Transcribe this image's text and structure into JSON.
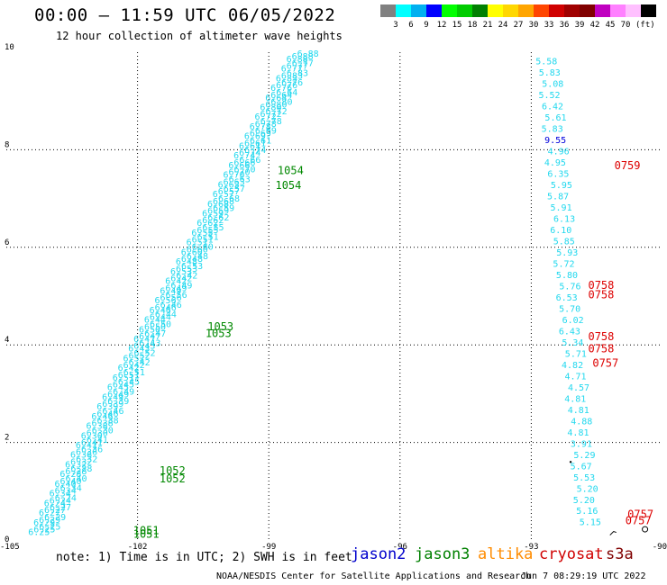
{
  "title": "00:00 – 11:59 UTC 06/05/2022",
  "subtitle": "12 hour collection of altimeter wave heights",
  "legend": {
    "colors": [
      "#808080",
      "#00ffff",
      "#00b0f0",
      "#0000ff",
      "#00ff00",
      "#00cc00",
      "#008000",
      "#ffff00",
      "#ffd700",
      "#ffa500",
      "#ff4500",
      "#d00000",
      "#a00000",
      "#800000",
      "#c000c0",
      "#ff80ff",
      "#ffc0ff",
      "#000000"
    ],
    "labels": [
      "3",
      "6",
      "9",
      "12",
      "15",
      "18",
      "21",
      "24",
      "27",
      "30",
      "33",
      "36",
      "39",
      "42",
      "45",
      "70",
      "(ft)"
    ]
  },
  "axes": {
    "x_ticks": [
      "-105",
      "-102",
      "-99",
      "-96",
      "-93",
      "-90"
    ],
    "y_ticks": [
      "0",
      "2",
      "4",
      "6",
      "8",
      "10"
    ]
  },
  "tracks": {
    "left_swh": [
      "6.25",
      "6.29",
      "6.27",
      "6.24",
      "6.34",
      "6.40",
      "6.28",
      "6.32",
      "6.36",
      "6.41",
      "6.30",
      "6.38",
      "6.46",
      "6.39",
      "6.49",
      "6.45",
      "6.51",
      "6.42",
      "6.52",
      "6.43",
      "6.47",
      "6.50",
      "6.44",
      "6.46",
      "6.56",
      "6.49",
      "6.42",
      "6.53",
      "6.48",
      "6.60",
      "6.51",
      "6.55",
      "6.62",
      "6.59",
      "6.68",
      "6.57",
      "6.63",
      "6.70",
      "6.66",
      "6.74",
      "6.61",
      "6.69",
      "6.78",
      "6.72",
      "6.80",
      "6.64",
      "6.76",
      "6.83",
      "6.77",
      "6.88"
    ],
    "left_times_lower": [
      "1051",
      "1051",
      "1052",
      "1052"
    ],
    "left_times_mid": [
      "1053",
      "1053"
    ],
    "left_times_upper": [
      "1054",
      "1054"
    ],
    "right_swh": [
      "5.58",
      "5.83",
      "5.08",
      "5.52",
      "6.42",
      "5.61",
      "5.83",
      "9.55",
      "4.96",
      "4.95",
      "6.35",
      "5.95",
      "5.87",
      "5.91",
      "6.13",
      "6.10",
      "5.85",
      "5.93",
      "5.72",
      "5.80",
      "5.76",
      "6.53",
      "5.70",
      "6.02",
      "6.43",
      "5.34",
      "5.71",
      "4.82",
      "4.71",
      "4.57",
      "4.81",
      "4.81",
      "4.88",
      "4.81",
      "3.91",
      "5.29",
      "5.67",
      "5.53",
      "5.20",
      "5.20",
      "5.16",
      "5.15"
    ],
    "right_times": [
      "0759",
      "0758",
      "0758",
      "0758",
      "0758",
      "0757",
      "0757",
      "0757"
    ]
  },
  "satellites": [
    {
      "name": "jason2",
      "color": "#0000cc"
    },
    {
      "name": "jason3",
      "color": "#008000"
    },
    {
      "name": "altika",
      "color": "#ff8c00"
    },
    {
      "name": "cryosat",
      "color": "#d00000"
    },
    {
      "name": "s3a",
      "color": "#800000"
    }
  ],
  "note": "note: 1) Time is in UTC; 2) SWH is in feet",
  "credit": "NOAA/NESDIS Center for Satellite Applications and Research",
  "timestamp": "Jun  7 08:29:19 UTC 2022"
}
